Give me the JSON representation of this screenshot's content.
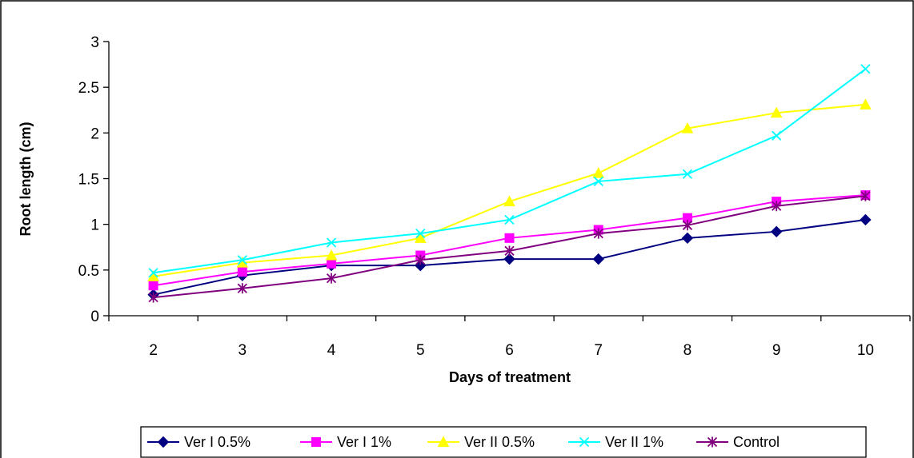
{
  "chart_data": {
    "type": "line",
    "title": "",
    "xlabel": "Days of treatment",
    "ylabel": "Root length (cm)",
    "categories": [
      "2",
      "3",
      "4",
      "5",
      "6",
      "7",
      "8",
      "9",
      "10"
    ],
    "ylim": [
      0,
      3
    ],
    "yticks": [
      "0",
      "0.5",
      "1",
      "1.5",
      "2",
      "2.5",
      "3"
    ],
    "grid": false,
    "legend_position": "bottom",
    "series": [
      {
        "name": "Ver I 0.5%",
        "color": "#000080",
        "marker": "diamond",
        "values": [
          0.23,
          0.44,
          0.55,
          0.55,
          0.62,
          0.62,
          0.85,
          0.92,
          1.05
        ]
      },
      {
        "name": "Ver I 1%",
        "color": "#FF00FF",
        "marker": "square",
        "values": [
          0.33,
          0.48,
          0.57,
          0.66,
          0.85,
          0.94,
          1.07,
          1.25,
          1.32
        ]
      },
      {
        "name": "Ver II 0.5%",
        "color": "#FFFF00",
        "marker": "triangle",
        "values": [
          0.43,
          0.58,
          0.66,
          0.85,
          1.25,
          1.56,
          2.05,
          2.22,
          2.31
        ]
      },
      {
        "name": "Ver II 1%",
        "color": "#00FFFF",
        "marker": "x",
        "values": [
          0.47,
          0.61,
          0.8,
          0.9,
          1.05,
          1.47,
          1.55,
          1.97,
          2.7
        ]
      },
      {
        "name": "Control",
        "color": "#800080",
        "marker": "star",
        "values": [
          0.2,
          0.3,
          0.41,
          0.61,
          0.71,
          0.9,
          0.99,
          1.2,
          1.31
        ]
      }
    ]
  }
}
